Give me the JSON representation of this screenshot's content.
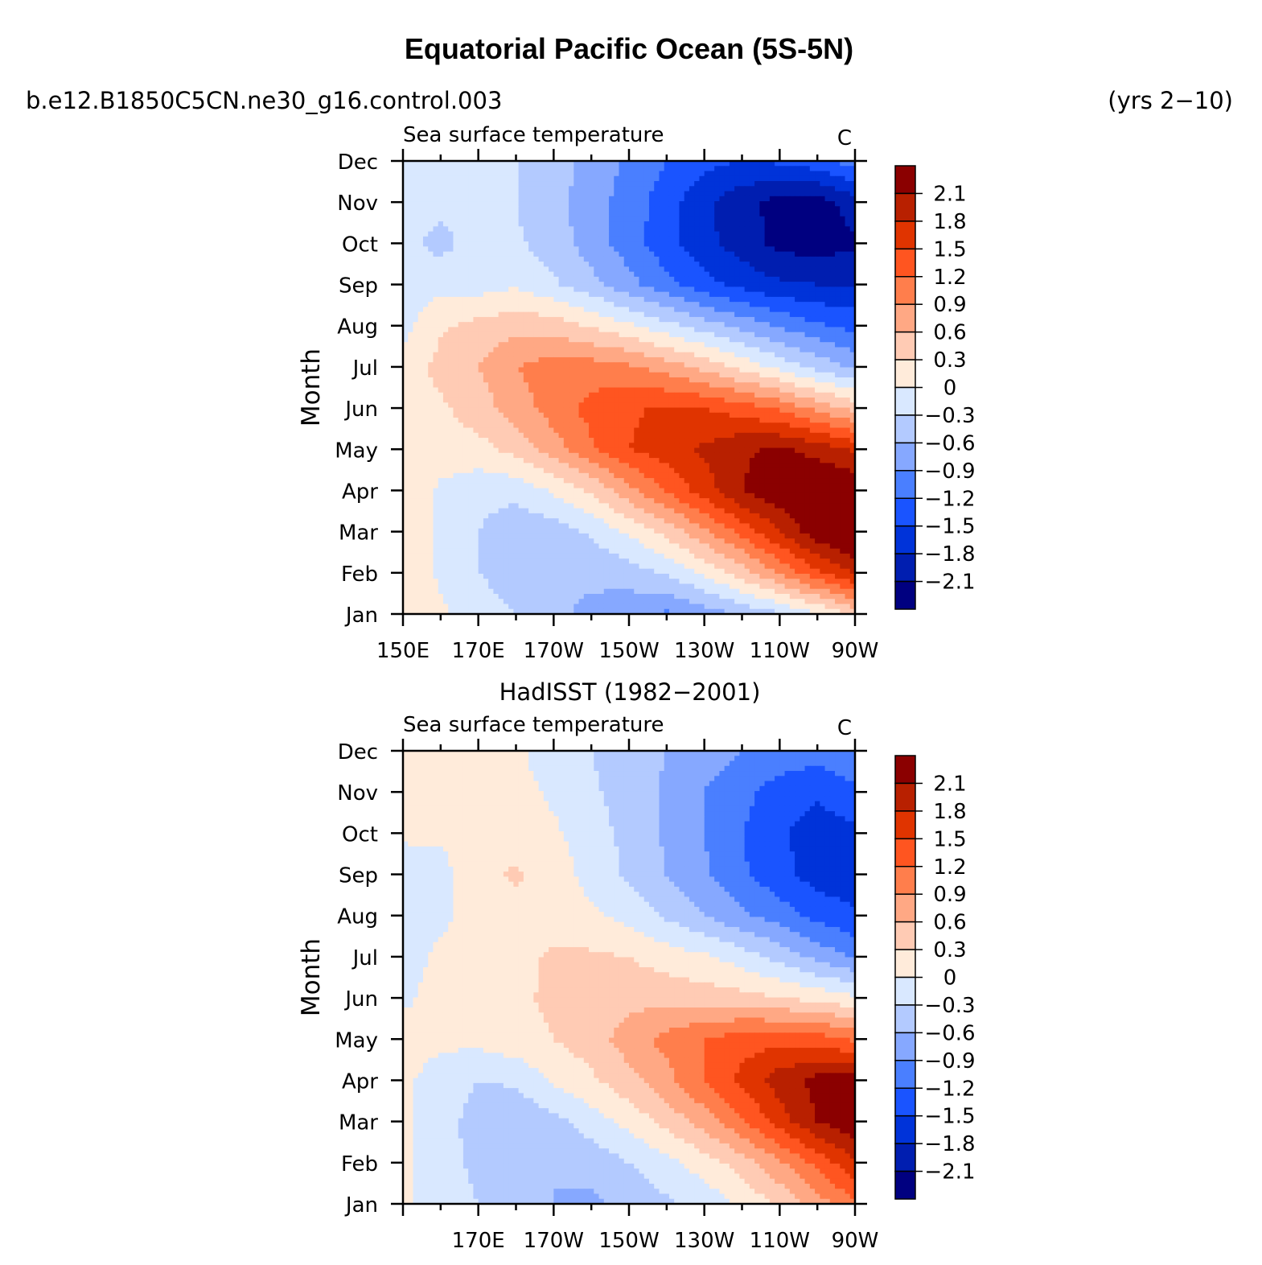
{
  "title": "Equatorial Pacific Ocean (5S-5N)",
  "case_name": "b.e12.B1850C5CN.ne30_g16.control.003",
  "years": "(yrs 2−10)",
  "colors": {
    "levels": [
      {
        "color": "#000080",
        "bin": "< -2.1"
      },
      {
        "color": "#001EB0",
        "bin": "-2.1 to -1.8"
      },
      {
        "color": "#0033D9",
        "bin": "-1.8 to -1.5"
      },
      {
        "color": "#1A54FF",
        "bin": "-1.5 to -1.2"
      },
      {
        "color": "#4A7FFF",
        "bin": "-1.2 to -0.9"
      },
      {
        "color": "#86A8FF",
        "bin": "-0.9 to -0.6"
      },
      {
        "color": "#B3CAFF",
        "bin": "-0.6 to -0.3"
      },
      {
        "color": "#D9E8FF",
        "bin": "-0.3 to 0"
      },
      {
        "color": "#FFEBDA",
        "bin": "0 to 0.3"
      },
      {
        "color": "#FFCBB4",
        "bin": "0.3 to 0.6"
      },
      {
        "color": "#FFA884",
        "bin": "0.6 to 0.9"
      },
      {
        "color": "#FF7E4C",
        "bin": "0.9 to 1.2"
      },
      {
        "color": "#FF5520",
        "bin": "1.2 to 1.5"
      },
      {
        "color": "#E03400",
        "bin": "1.5 to 1.8"
      },
      {
        "color": "#B82000",
        "bin": "1.8 to 2.1"
      },
      {
        "color": "#8B0000",
        "bin": "> 2.1"
      }
    ]
  },
  "chart_data": [
    {
      "type": "heatmap",
      "panel_title": "",
      "left_label": "Sea surface temperature",
      "units": "C",
      "ylabel": "Month",
      "x_ticks": [
        "150E",
        "170E",
        "170W",
        "150W",
        "130W",
        "110W",
        "90W"
      ],
      "y": [
        "Jan",
        "Feb",
        "Mar",
        "Apr",
        "May",
        "Jun",
        "Jul",
        "Aug",
        "Sep",
        "Oct",
        "Nov",
        "Dec"
      ],
      "x": [
        "150E",
        "160E",
        "170E",
        "180",
        "170W",
        "160W",
        "150W",
        "140W",
        "130W",
        "120W",
        "110W",
        "100W",
        "90W"
      ],
      "colorbar_labels": [
        "2.1",
        "1.8",
        "1.5",
        "1.2",
        "0.9",
        "0.6",
        "0.3",
        "0",
        "−0.3",
        "−0.6",
        "−0.9",
        "−1.2",
        "−1.5",
        "−1.8",
        "−2.1"
      ],
      "values": [
        [
          0.25,
          0.05,
          -0.15,
          -0.3,
          -0.55,
          -0.65,
          -0.8,
          -0.95,
          -0.75,
          -0.55,
          -0.35,
          -0.05,
          0.4
        ],
        [
          0.25,
          -0.05,
          -0.3,
          -0.45,
          -0.6,
          -0.55,
          -0.45,
          -0.25,
          0.05,
          0.45,
          0.95,
          1.45,
          1.85
        ],
        [
          0.25,
          -0.05,
          -0.3,
          -0.5,
          -0.45,
          -0.25,
          0.05,
          0.4,
          0.85,
          1.3,
          1.8,
          2.3,
          2.55
        ],
        [
          0.2,
          -0.05,
          -0.2,
          -0.2,
          0.05,
          0.35,
          0.8,
          1.25,
          1.65,
          2.1,
          2.35,
          2.45,
          2.4
        ],
        [
          0.2,
          0.15,
          0.2,
          0.4,
          0.75,
          1.15,
          1.5,
          1.65,
          1.85,
          2.05,
          2.15,
          2.0,
          1.75
        ],
        [
          0.2,
          0.25,
          0.45,
          0.75,
          1.05,
          1.3,
          1.45,
          1.55,
          1.5,
          1.35,
          1.15,
          0.8,
          0.5
        ],
        [
          0.1,
          0.4,
          0.6,
          0.9,
          1.05,
          1.05,
          0.95,
          0.75,
          0.5,
          0.2,
          -0.1,
          -0.4,
          -0.65
        ],
        [
          -0.1,
          0.25,
          0.4,
          0.5,
          0.45,
          0.25,
          0.05,
          -0.2,
          -0.45,
          -0.7,
          -0.95,
          -1.15,
          -1.3
        ],
        [
          -0.15,
          -0.1,
          -0.15,
          -0.05,
          -0.25,
          -0.5,
          -0.8,
          -1.1,
          -1.4,
          -1.6,
          -1.75,
          -1.8,
          -1.8
        ],
        [
          -0.2,
          -0.4,
          -0.15,
          -0.25,
          -0.45,
          -0.75,
          -1.05,
          -1.4,
          -1.7,
          -1.95,
          -2.2,
          -2.25,
          -2.15
        ],
        [
          -0.2,
          -0.2,
          -0.2,
          -0.3,
          -0.5,
          -0.75,
          -1.05,
          -1.35,
          -1.75,
          -2.0,
          -2.2,
          -2.25,
          -1.95
        ],
        [
          -0.2,
          -0.2,
          -0.2,
          -0.3,
          -0.45,
          -0.7,
          -0.95,
          -1.2,
          -1.4,
          -1.5,
          -1.45,
          -1.3,
          -1.05
        ]
      ],
      "xlim": [
        "150E",
        "90W"
      ],
      "ylim": [
        "Jan",
        "Dec"
      ]
    },
    {
      "type": "heatmap",
      "panel_title": "HadISST (1982−2001)",
      "left_label": "Sea surface temperature",
      "units": "C",
      "ylabel": "Month",
      "x_ticks": [
        "170E",
        "170W",
        "150W",
        "130W",
        "110W",
        "90W"
      ],
      "y": [
        "Jan",
        "Feb",
        "Mar",
        "Apr",
        "May",
        "Jun",
        "Jul",
        "Aug",
        "Sep",
        "Oct",
        "Nov",
        "Dec"
      ],
      "x": [
        "150E",
        "160E",
        "170E",
        "180",
        "170W",
        "160W",
        "150W",
        "140W",
        "130W",
        "120W",
        "110W",
        "100W",
        "90W"
      ],
      "colorbar_labels": [
        "2.1",
        "1.8",
        "1.5",
        "1.2",
        "0.9",
        "0.6",
        "0.3",
        "0",
        "−0.3",
        "−0.6",
        "−0.9",
        "−1.2",
        "−1.5",
        "−1.8",
        "−2.1"
      ],
      "values": [
        [
          0.05,
          -0.1,
          -0.3,
          -0.45,
          -0.6,
          -0.65,
          -0.5,
          -0.35,
          -0.2,
          0.05,
          0.35,
          0.75,
          1.15
        ],
        [
          0.05,
          -0.15,
          -0.4,
          -0.55,
          -0.6,
          -0.5,
          -0.3,
          -0.1,
          0.15,
          0.45,
          0.85,
          1.3,
          1.75
        ],
        [
          0.05,
          -0.15,
          -0.45,
          -0.55,
          -0.4,
          -0.15,
          0.1,
          0.4,
          0.75,
          1.15,
          1.65,
          2.1,
          2.35
        ],
        [
          0.05,
          -0.1,
          -0.3,
          -0.25,
          0.05,
          0.25,
          0.5,
          0.8,
          1.2,
          1.6,
          1.95,
          2.2,
          2.25
        ],
        [
          0.1,
          0.05,
          0.1,
          0.2,
          0.3,
          0.45,
          0.75,
          1.0,
          1.2,
          1.35,
          1.4,
          1.35,
          1.15
        ],
        [
          -0.05,
          0.1,
          0.15,
          0.25,
          0.35,
          0.45,
          0.5,
          0.5,
          0.45,
          0.4,
          0.3,
          0.2,
          0.05
        ],
        [
          -0.1,
          0.05,
          0.1,
          0.2,
          0.35,
          0.35,
          0.3,
          0.15,
          0.05,
          -0.15,
          -0.4,
          -0.7,
          -0.95
        ],
        [
          -0.15,
          -0.05,
          0.1,
          0.2,
          0.15,
          0.05,
          -0.1,
          -0.35,
          -0.6,
          -0.85,
          -1.05,
          -1.3,
          -1.45
        ],
        [
          -0.15,
          -0.1,
          0.2,
          0.35,
          0.15,
          -0.1,
          -0.35,
          -0.6,
          -0.85,
          -1.15,
          -1.4,
          -1.65,
          -1.7
        ],
        [
          0.05,
          0.05,
          0.1,
          0.15,
          0.05,
          -0.15,
          -0.4,
          -0.65,
          -0.9,
          -1.2,
          -1.45,
          -1.65,
          -1.55
        ],
        [
          0.05,
          0.05,
          0.1,
          0.1,
          -0.05,
          -0.25,
          -0.45,
          -0.65,
          -0.9,
          -1.1,
          -1.35,
          -1.45,
          -1.3
        ],
        [
          0.05,
          0.05,
          0.05,
          0.05,
          -0.15,
          -0.3,
          -0.45,
          -0.6,
          -0.75,
          -0.9,
          -1.0,
          -1.05,
          -0.9
        ]
      ],
      "xlim": [
        "150E",
        "90W"
      ],
      "ylim": [
        "Jan",
        "Dec"
      ]
    }
  ]
}
